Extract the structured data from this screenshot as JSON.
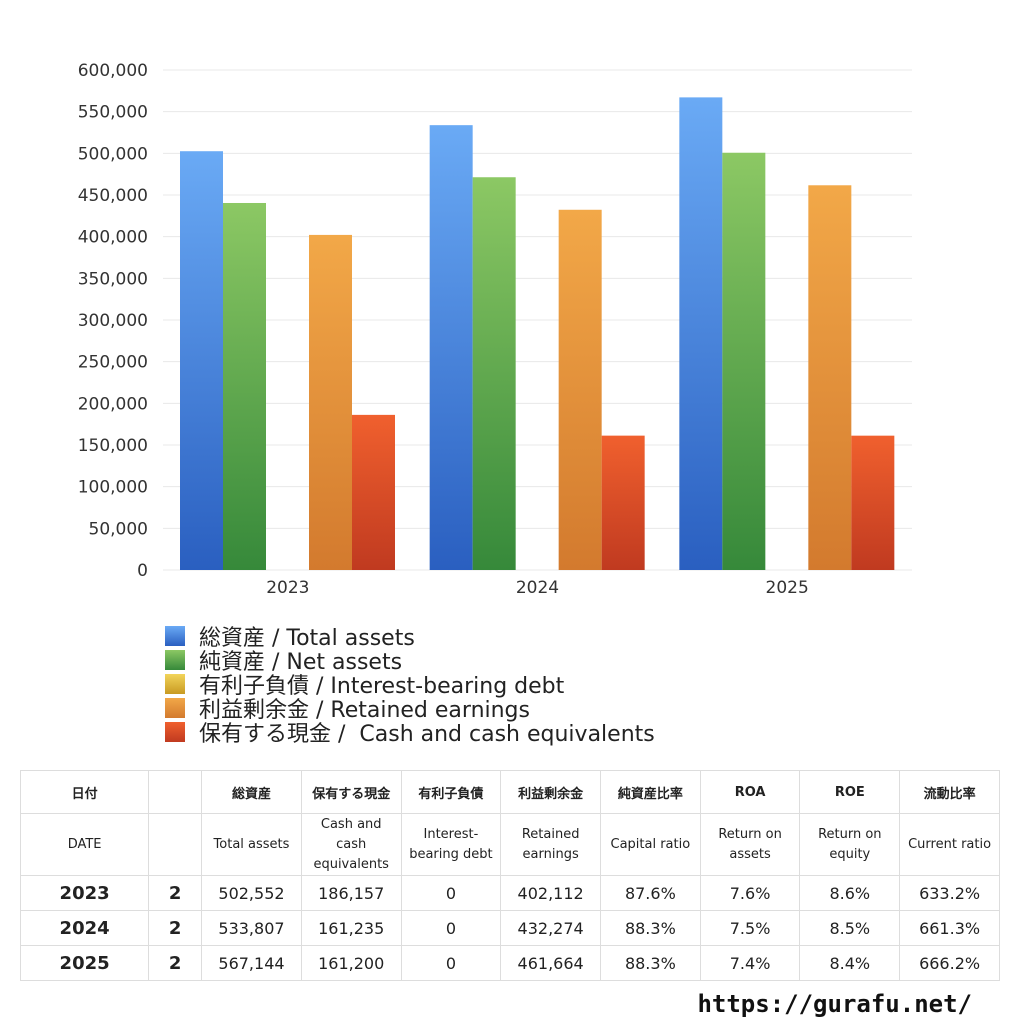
{
  "chart_data": {
    "type": "bar",
    "categories": [
      "2023",
      "2024",
      "2025"
    ],
    "ylim": [
      0,
      600000
    ],
    "ytick_labels": [
      "0",
      "50,000",
      "100,000",
      "150,000",
      "200,000",
      "250,000",
      "300,000",
      "350,000",
      "400,000",
      "450,000",
      "500,000",
      "550,000",
      "600,000"
    ],
    "ytick_values": [
      0,
      50000,
      100000,
      150000,
      200000,
      250000,
      300000,
      350000,
      400000,
      450000,
      500000,
      550000,
      600000
    ],
    "grid": true,
    "legend_position": "bottom",
    "series": [
      {
        "name": "総資産 / Total assets",
        "values": [
          502552,
          533807,
          567144
        ],
        "color_top": "#6aaaf5",
        "color_bottom": "#2a5fc0"
      },
      {
        "name": "純資産 / Net assets",
        "values": [
          440411,
          471310,
          500700
        ],
        "color_top": "#8cc864",
        "color_bottom": "#36893a"
      },
      {
        "name": "有利子負債 / Interest-bearing debt",
        "values": [
          0,
          0,
          0
        ],
        "color_top": "#f2d45a",
        "color_bottom": "#c89a22"
      },
      {
        "name": "利益剰余金 / Retained earnings",
        "values": [
          402112,
          432274,
          461664
        ],
        "color_top": "#f2a848",
        "color_bottom": "#d37a2e"
      },
      {
        "name": "保有する現金 /  Cash and cash equivalents",
        "values": [
          186157,
          161235,
          161200
        ],
        "color_top": "#f0602e",
        "color_bottom": "#c03a20"
      }
    ]
  },
  "table": {
    "header_jp": [
      "日付",
      "",
      "総資産",
      "保有する現金",
      "有利子負債",
      "利益剰余金",
      "純資産比率",
      "ROA",
      "ROE",
      "流動比率"
    ],
    "header_en": [
      "DATE",
      "",
      "Total assets",
      "Cash and cash equivalents",
      "Interest-bearing debt",
      "Retained earnings",
      "Capital ratio",
      "Return on assets",
      "Return on equity",
      "Current ratio"
    ],
    "rows": [
      [
        "2023",
        "2",
        "502,552",
        "186,157",
        "0",
        "402,112",
        "87.6%",
        "7.6%",
        "8.6%",
        "633.2%"
      ],
      [
        "2024",
        "2",
        "533,807",
        "161,235",
        "0",
        "432,274",
        "88.3%",
        "7.5%",
        "8.5%",
        "661.3%"
      ],
      [
        "2025",
        "2",
        "567,144",
        "161,200",
        "0",
        "461,664",
        "88.3%",
        "7.4%",
        "8.4%",
        "666.2%"
      ]
    ]
  },
  "footer": {
    "url": "https://gurafu.net/"
  }
}
